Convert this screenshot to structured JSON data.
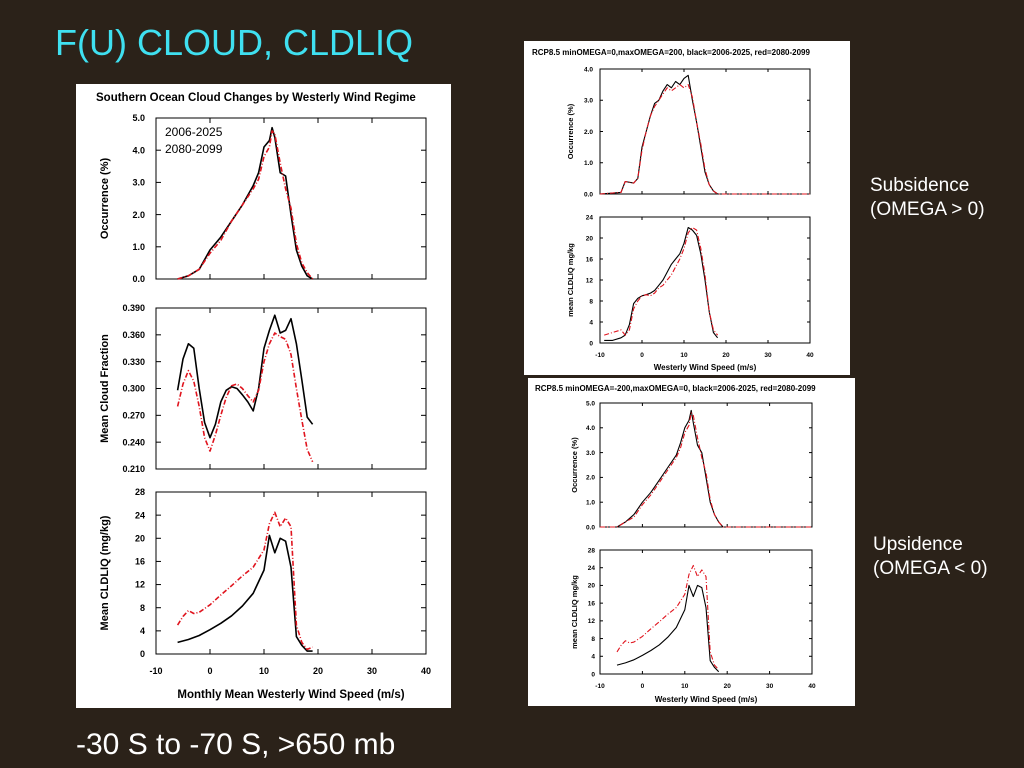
{
  "slide": {
    "title": "F(U) CLOUD, CLDLIQ",
    "caption": "-30 S to -70 S, >650 mb",
    "subsidence_line1": "Subsidence",
    "subsidence_line2": "(OMEGA > 0)",
    "upsidence_line1": "Upsidence",
    "upsidence_line2": "(OMEGA < 0)"
  },
  "colors": {
    "black_series": "#000000",
    "red_series": "#e0141e",
    "title_cyan": "#3fe0f0"
  },
  "chart_data": [
    {
      "id": "left",
      "type": "line",
      "title": "Southern Ocean Cloud Changes by Westerly Wind Regime",
      "xlabel": "Monthly Mean Westerly Wind Speed (m/s)",
      "xlim": [
        -10,
        40
      ],
      "xticks": [
        -10,
        0,
        10,
        20,
        30,
        40
      ],
      "legend": [
        {
          "name": "2006-2025",
          "color": "#000000"
        },
        {
          "name": "2080-2099",
          "color": "#e0141e"
        }
      ],
      "panels": [
        {
          "ylabel": "Occurrence (%)",
          "ylim": [
            0,
            5
          ],
          "yticks": [
            "0.0",
            "1.0",
            "2.0",
            "3.0",
            "4.0",
            "5.0"
          ],
          "series": [
            {
              "name": "2006-2025",
              "x": [
                -6,
                -4,
                -2,
                0,
                2,
                4,
                6,
                8,
                9,
                10,
                11,
                11.5,
                12,
                13,
                14,
                15,
                16,
                17,
                18,
                19
              ],
              "y": [
                0,
                0.1,
                0.3,
                0.9,
                1.3,
                1.8,
                2.3,
                2.9,
                3.3,
                4.1,
                4.3,
                4.7,
                4.4,
                3.3,
                3.2,
                2.0,
                0.9,
                0.4,
                0.1,
                0
              ]
            },
            {
              "name": "2080-2099",
              "x": [
                -6,
                -4,
                -2,
                0,
                2,
                4,
                6,
                8,
                9,
                10,
                11,
                11.5,
                12,
                13,
                14,
                15,
                16,
                17,
                18,
                19
              ],
              "y": [
                0,
                0.1,
                0.3,
                0.8,
                1.2,
                1.8,
                2.3,
                2.8,
                3.1,
                3.8,
                4.1,
                4.6,
                4.5,
                3.6,
                2.8,
                2.2,
                1.1,
                0.5,
                0.2,
                0
              ]
            }
          ]
        },
        {
          "ylabel": "Mean Cloud Fraction",
          "ylim": [
            0.21,
            0.39
          ],
          "yticks": [
            "0.210",
            "0.240",
            "0.270",
            "0.300",
            "0.330",
            "0.360",
            "0.390"
          ],
          "series": [
            {
              "name": "2006-2025",
              "x": [
                -6,
                -5,
                -4,
                -3,
                -2,
                -1,
                0,
                1,
                2,
                3,
                4,
                5,
                6,
                7,
                8,
                9,
                10,
                11,
                12,
                13,
                14,
                15,
                16,
                17,
                18,
                19
              ],
              "y": [
                0.298,
                0.333,
                0.35,
                0.345,
                0.3,
                0.262,
                0.245,
                0.26,
                0.285,
                0.298,
                0.302,
                0.3,
                0.293,
                0.285,
                0.275,
                0.3,
                0.345,
                0.365,
                0.382,
                0.362,
                0.365,
                0.378,
                0.35,
                0.31,
                0.268,
                0.26
              ]
            },
            {
              "name": "2080-2099",
              "x": [
                -6,
                -5,
                -4,
                -3,
                -2,
                -1,
                0,
                1,
                2,
                3,
                4,
                5,
                6,
                7,
                8,
                9,
                10,
                11,
                12,
                13,
                14,
                15,
                16,
                17,
                18,
                19
              ],
              "y": [
                0.28,
                0.305,
                0.32,
                0.308,
                0.28,
                0.245,
                0.23,
                0.248,
                0.27,
                0.29,
                0.303,
                0.305,
                0.3,
                0.292,
                0.285,
                0.298,
                0.33,
                0.35,
                0.362,
                0.358,
                0.355,
                0.338,
                0.3,
                0.265,
                0.232,
                0.218
              ]
            }
          ]
        },
        {
          "ylabel": "Mean CLDLIQ (mg/kg)",
          "ylim": [
            0,
            28
          ],
          "yticks": [
            "0",
            "4",
            "8",
            "12",
            "16",
            "20",
            "24",
            "28"
          ],
          "series": [
            {
              "name": "2006-2025",
              "x": [
                -6,
                -4,
                -2,
                0,
                2,
                4,
                6,
                8,
                10,
                11,
                12,
                13,
                14,
                15,
                16,
                17,
                18,
                19
              ],
              "y": [
                2.0,
                2.5,
                3.2,
                4.2,
                5.3,
                6.6,
                8.3,
                10.5,
                14.5,
                20.5,
                17.5,
                20.0,
                19.5,
                15.0,
                3.0,
                1.5,
                0.5,
                0.5
              ]
            },
            {
              "name": "2080-2099",
              "x": [
                -6,
                -5,
                -4,
                -3,
                -2,
                0,
                2,
                4,
                6,
                8,
                10,
                11,
                12,
                13,
                14,
                15,
                16,
                17,
                18,
                19
              ],
              "y": [
                5.0,
                6.5,
                7.5,
                7.0,
                7.2,
                8.5,
                10.2,
                11.8,
                13.5,
                15.0,
                18.0,
                22.5,
                24.5,
                22.0,
                23.5,
                22.0,
                5.0,
                2.0,
                0.8,
                1.2
              ]
            }
          ]
        }
      ]
    },
    {
      "id": "right-top",
      "type": "line",
      "title": "RCP8.5 minOMEGA=0,maxOMEGA=200, black=2006-2025, red=2080-2099",
      "xlabel": "Westerly Wind Speed (m/s)",
      "xlim": [
        -10,
        40
      ],
      "xticks": [
        -10,
        0,
        10,
        20,
        30,
        40
      ],
      "panels": [
        {
          "ylabel": "Occurrence (%)",
          "ylim": [
            0,
            4
          ],
          "yticks": [
            "0.0",
            "1.0",
            "2.0",
            "3.0",
            "4.0"
          ],
          "series": [
            {
              "name": "black",
              "x": [
                -10,
                -5,
                -4,
                -2,
                -1,
                0,
                1,
                2,
                3,
                4,
                5,
                6,
                7,
                8,
                9,
                10,
                11,
                12,
                13,
                14,
                15,
                16,
                17,
                18,
                20,
                30,
                40
              ],
              "y": [
                0,
                0.05,
                0.4,
                0.35,
                0.5,
                1.5,
                2.0,
                2.5,
                2.9,
                3.0,
                3.3,
                3.5,
                3.4,
                3.6,
                3.5,
                3.7,
                3.8,
                3.0,
                2.3,
                1.5,
                0.7,
                0.3,
                0.1,
                0,
                0,
                0,
                0
              ]
            },
            {
              "name": "red",
              "x": [
                -10,
                -5,
                -4,
                -2,
                -1,
                0,
                1,
                2,
                3,
                4,
                5,
                6,
                7,
                8,
                9,
                10,
                11,
                12,
                13,
                14,
                15,
                16,
                17,
                18,
                20,
                30,
                40
              ],
              "y": [
                0,
                0.05,
                0.4,
                0.35,
                0.5,
                1.4,
                2.0,
                2.5,
                2.8,
                3.0,
                3.2,
                3.4,
                3.3,
                3.4,
                3.5,
                3.4,
                3.5,
                3.1,
                2.3,
                1.6,
                0.8,
                0.3,
                0.1,
                0,
                0,
                0,
                0
              ]
            }
          ]
        },
        {
          "ylabel": "mean CLDLIQ mg/kg",
          "ylim": [
            0,
            24
          ],
          "yticks": [
            "0",
            "4",
            "8",
            "12",
            "16",
            "20",
            "24"
          ],
          "series": [
            {
              "name": "black",
              "x": [
                -9,
                -7,
                -5,
                -4,
                -3,
                -2,
                -1,
                0,
                1,
                2,
                3,
                4,
                5,
                6,
                7,
                8,
                9,
                10,
                11,
                12,
                13,
                14,
                15,
                16,
                17,
                18
              ],
              "y": [
                0.5,
                0.5,
                1.0,
                1.5,
                3.5,
                7.5,
                8.5,
                9.0,
                9.2,
                9.5,
                10.0,
                11.0,
                12.0,
                13.5,
                15.0,
                16.0,
                17.0,
                19.0,
                22.0,
                21.5,
                20.5,
                17.0,
                12.0,
                6.0,
                2.0,
                1.0
              ]
            },
            {
              "name": "red",
              "x": [
                -9,
                -7,
                -5,
                -4,
                -3,
                -2,
                -1,
                0,
                1,
                2,
                3,
                4,
                5,
                6,
                7,
                8,
                9,
                10,
                11,
                12,
                13,
                14,
                15,
                16,
                17,
                18
              ],
              "y": [
                1.5,
                2.0,
                2.5,
                1.5,
                2.5,
                6.5,
                8.0,
                9.0,
                9.2,
                9.0,
                9.5,
                10.5,
                11.0,
                12.0,
                13.0,
                14.5,
                16.0,
                18.0,
                21.0,
                22.0,
                21.5,
                18.0,
                13.0,
                6.0,
                2.5,
                1.5
              ]
            }
          ]
        }
      ]
    },
    {
      "id": "right-bottom",
      "type": "line",
      "title": "RCP8.5 minOMEGA=-200,maxOMEGA=0, black=2006-2025, red=2080-2099",
      "xlabel": "Westerly Wind Speed (m/s)",
      "xlim": [
        -10,
        40
      ],
      "xticks": [
        -10,
        0,
        10,
        20,
        30,
        40
      ],
      "panels": [
        {
          "ylabel": "Occurrence (%)",
          "ylim": [
            0,
            5
          ],
          "yticks": [
            "0.0",
            "1.0",
            "2.0",
            "3.0",
            "4.0",
            "5.0"
          ],
          "series": [
            {
              "name": "black",
              "x": [
                -10,
                -6,
                -4,
                -2,
                0,
                2,
                4,
                6,
                8,
                9,
                10,
                11,
                11.5,
                12,
                13,
                14,
                15,
                16,
                17,
                18,
                19,
                20,
                30,
                40
              ],
              "y": [
                0,
                0,
                0.2,
                0.5,
                1.0,
                1.4,
                1.9,
                2.4,
                2.9,
                3.4,
                4.0,
                4.3,
                4.7,
                4.2,
                3.3,
                3.0,
                2.0,
                1.0,
                0.5,
                0.2,
                0,
                0,
                0,
                0
              ]
            },
            {
              "name": "red",
              "x": [
                -10,
                -6,
                -4,
                -2,
                0,
                2,
                4,
                6,
                8,
                9,
                10,
                11,
                11.5,
                12,
                13,
                14,
                15,
                16,
                17,
                18,
                19,
                20,
                30,
                40
              ],
              "y": [
                0,
                0,
                0.2,
                0.4,
                0.9,
                1.3,
                1.8,
                2.3,
                2.8,
                3.2,
                3.8,
                4.1,
                4.6,
                4.5,
                3.6,
                2.8,
                2.2,
                1.1,
                0.5,
                0.2,
                0,
                0,
                0,
                0
              ]
            }
          ]
        },
        {
          "ylabel": "mean CLDLIQ mg/kg",
          "ylim": [
            0,
            28
          ],
          "yticks": [
            "0",
            "4",
            "8",
            "12",
            "16",
            "20",
            "24",
            "28"
          ],
          "series": [
            {
              "name": "black",
              "x": [
                -6,
                -4,
                -2,
                0,
                2,
                4,
                6,
                8,
                10,
                11,
                12,
                13,
                14,
                15,
                16,
                17,
                18
              ],
              "y": [
                2.0,
                2.5,
                3.2,
                4.2,
                5.3,
                6.6,
                8.3,
                10.5,
                14.5,
                20.0,
                17.5,
                20.0,
                19.5,
                15.0,
                3.0,
                1.5,
                0.5
              ]
            },
            {
              "name": "red",
              "x": [
                -6,
                -5,
                -4,
                -3,
                -2,
                0,
                2,
                4,
                6,
                8,
                10,
                11,
                12,
                13,
                14,
                15,
                16,
                17,
                18
              ],
              "y": [
                5.0,
                6.5,
                7.5,
                7.0,
                7.2,
                8.5,
                10.2,
                11.8,
                13.5,
                15.0,
                18.0,
                22.5,
                24.5,
                22.0,
                23.5,
                22.0,
                5.0,
                2.0,
                1.0
              ]
            }
          ]
        }
      ]
    }
  ]
}
